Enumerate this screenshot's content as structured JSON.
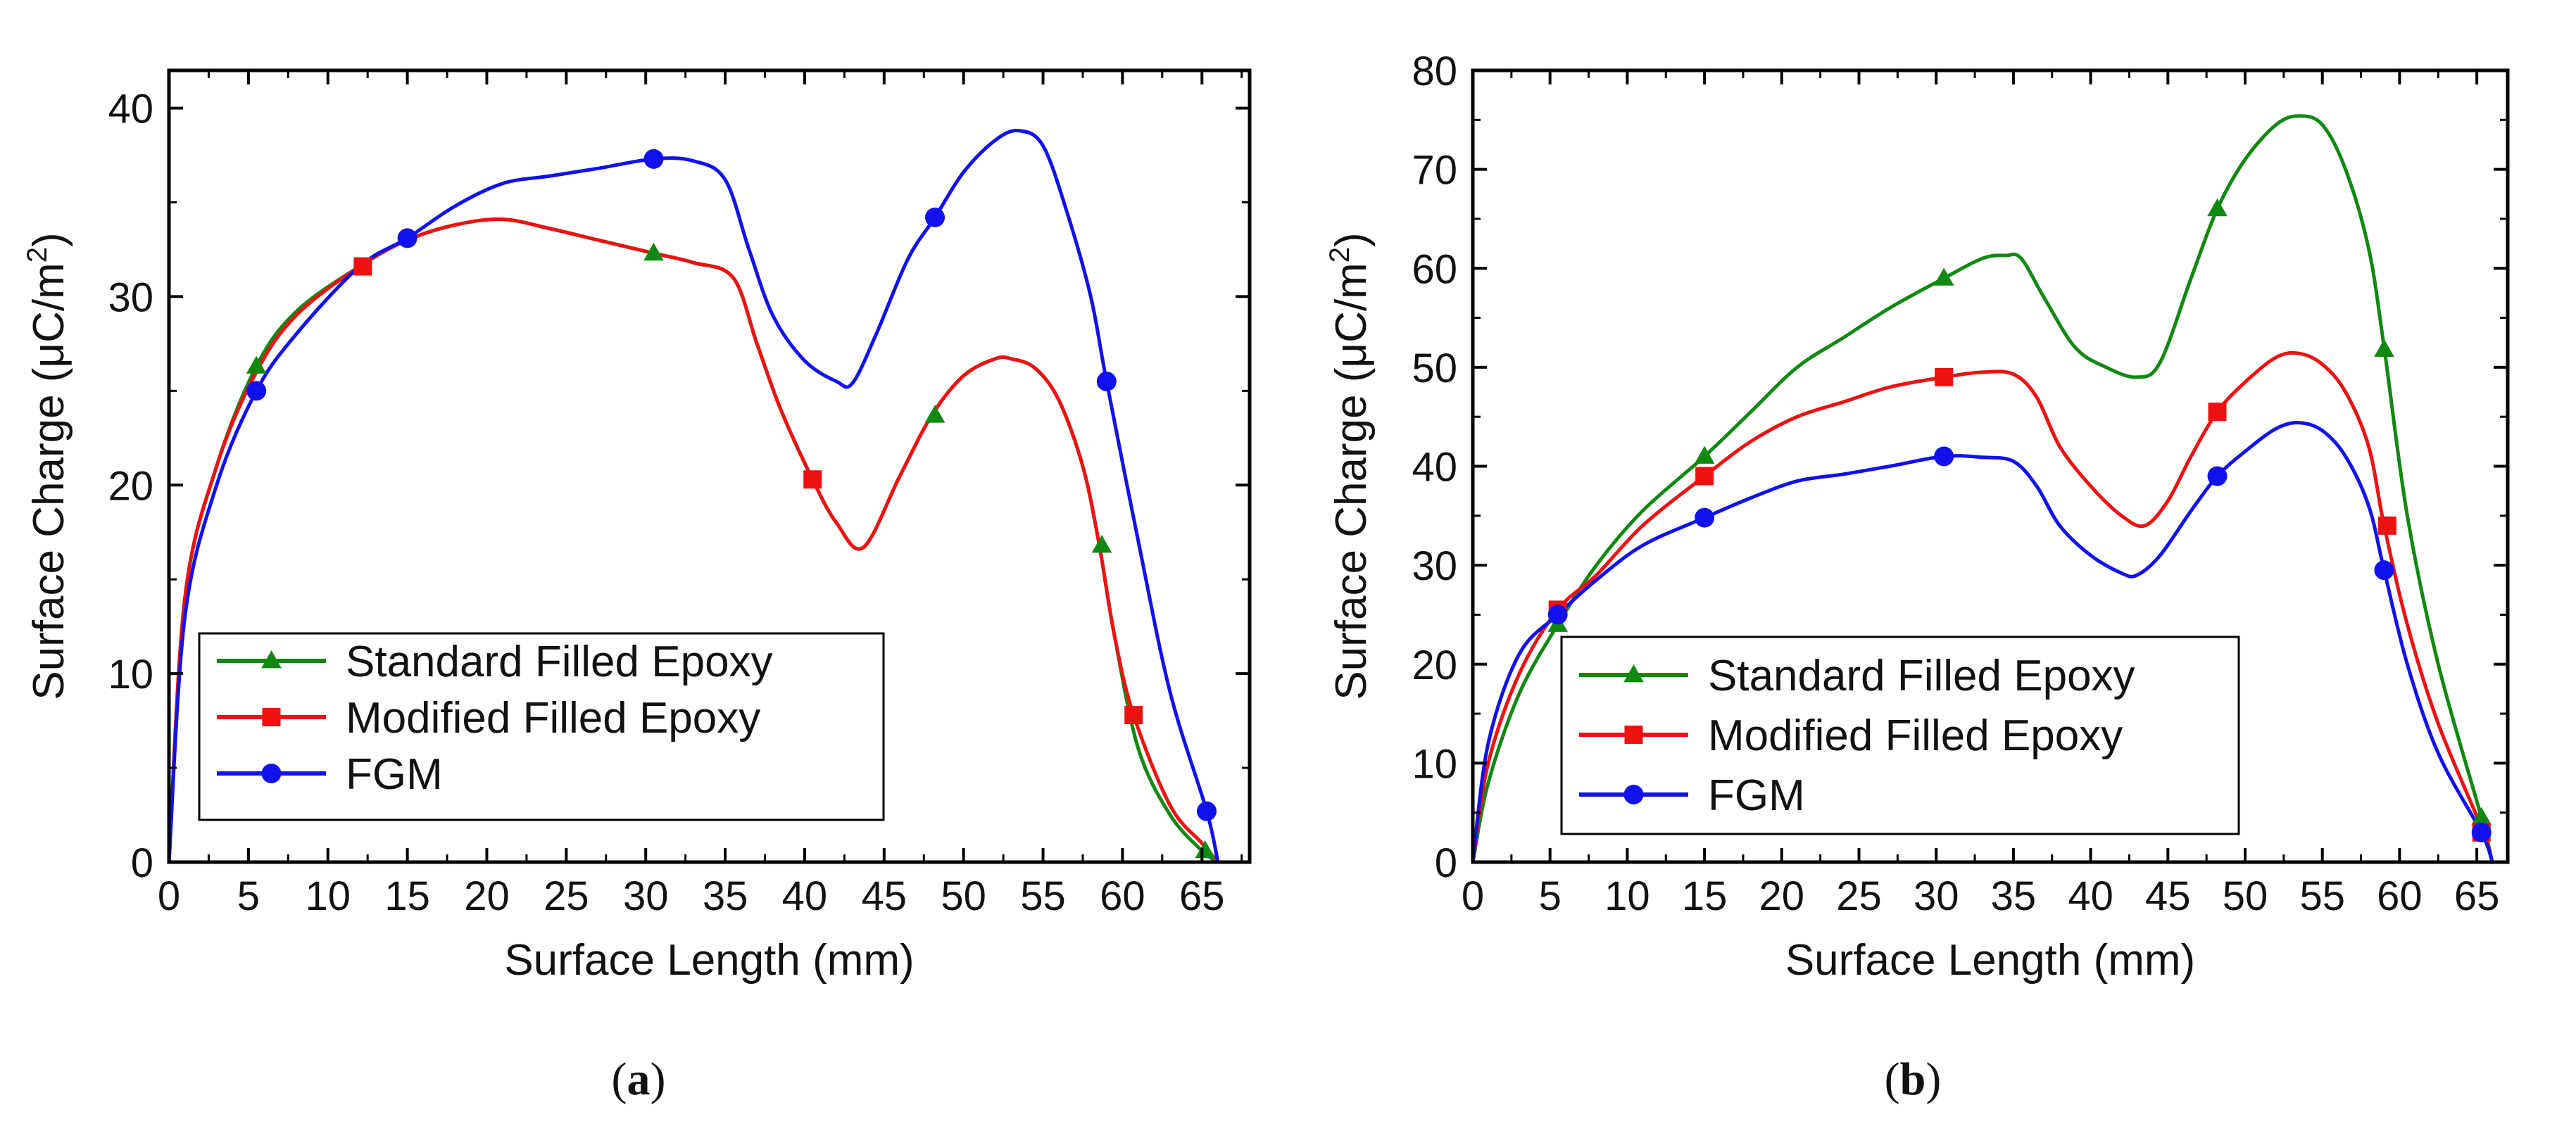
{
  "chart_data": [
    {
      "id": "a",
      "type": "line",
      "caption": "a",
      "xlabel": "Surface Length (mm)",
      "ylabel": "Surface Charge (μC/m²)",
      "ylabel_main": "Surface Charge (μC/m",
      "ylabel_sup": "2",
      "ylabel_close": ")",
      "xlim": [
        0,
        68
      ],
      "ylim": [
        0,
        42
      ],
      "xticks": [
        0,
        5,
        10,
        15,
        20,
        25,
        30,
        35,
        40,
        45,
        50,
        55,
        60,
        65
      ],
      "yticks": [
        0,
        10,
        20,
        30,
        40
      ],
      "legend_position": "bottom-left",
      "series": [
        {
          "name": "Standard Filled Epoxy",
          "color": "#118811",
          "marker": "triangle",
          "x": [
            0,
            1,
            3,
            5.5,
            8,
            12,
            15,
            18,
            21,
            24,
            27,
            30.5,
            33,
            35.5,
            37,
            38.5,
            40.5,
            42,
            43.7,
            46,
            48,
            50,
            52,
            53,
            54.5,
            56,
            57.5,
            58.5,
            59.5,
            61,
            63,
            65,
            66
          ],
          "y": [
            0,
            14,
            21,
            26.3,
            29.2,
            31.6,
            33,
            33.8,
            34.1,
            33.6,
            33,
            32.3,
            31.8,
            31,
            27.5,
            24,
            20.3,
            18,
            16.7,
            20.5,
            23.7,
            25.8,
            26.7,
            26.7,
            26.2,
            24.5,
            21,
            17,
            12,
            6,
            2.5,
            0.6,
            0
          ],
          "marker_x": [
            5.5,
            30.5,
            48.2,
            58.7,
            65.2
          ],
          "marker_y": [
            26.3,
            32.3,
            23.7,
            16.8,
            0.6
          ]
        },
        {
          "name": "Modified Filled Epoxy",
          "color": "#ee1111",
          "marker": "square",
          "x": [
            0,
            1,
            3,
            5.5,
            8,
            12,
            15,
            18,
            21,
            24,
            27,
            30.5,
            33,
            35.5,
            37,
            38.5,
            40.5,
            42,
            43.7,
            46,
            48,
            50,
            52,
            53,
            54.5,
            56,
            57.5,
            58.5,
            59.5,
            60.7,
            63,
            65,
            66
          ],
          "y": [
            0,
            14,
            21,
            26,
            29,
            31.6,
            33,
            33.8,
            34.1,
            33.6,
            33,
            32.3,
            31.8,
            31,
            27.5,
            24,
            20.3,
            18,
            16.7,
            20.5,
            23.7,
            25.8,
            26.7,
            26.7,
            26.2,
            24.5,
            21,
            17,
            12,
            7.8,
            3,
            1,
            0
          ],
          "marker_x": [
            12.2,
            40.5,
            60.7
          ],
          "marker_y": [
            31.6,
            20.3,
            7.8
          ]
        },
        {
          "name": "FGM",
          "color": "#1111ee",
          "marker": "circle",
          "x": [
            0,
            1,
            3,
            5.5,
            8,
            12,
            15,
            18,
            21,
            24,
            27,
            30.5,
            33,
            35,
            36.5,
            38,
            40,
            42,
            43,
            44.5,
            46.5,
            48.2,
            50,
            52,
            53.5,
            55,
            56.5,
            58,
            59,
            61,
            63,
            65.3,
            66
          ],
          "y": [
            0,
            13,
            20,
            25,
            28,
            31.6,
            33.1,
            34.8,
            36,
            36.4,
            36.8,
            37.3,
            37.2,
            36.2,
            32.5,
            29,
            26.6,
            25.5,
            25.4,
            28,
            32,
            34.2,
            36.6,
            38.3,
            38.8,
            38,
            34.5,
            30,
            25.5,
            17,
            9,
            2.7,
            0
          ],
          "marker_x": [
            5.5,
            15,
            30.5,
            48.2,
            59,
            65.3
          ],
          "marker_y": [
            25,
            33.1,
            37.3,
            34.2,
            25.5,
            2.7
          ]
        }
      ]
    },
    {
      "id": "b",
      "type": "line",
      "caption": "b",
      "xlabel": "Surface Length (mm)",
      "ylabel": "Surface Charge (μC/m²)",
      "ylabel_main": "Surface Charge (μC/m",
      "ylabel_sup": "2",
      "ylabel_close": ")",
      "xlim": [
        0,
        67
      ],
      "ylim": [
        0,
        80
      ],
      "xticks": [
        0,
        5,
        10,
        15,
        20,
        25,
        30,
        35,
        40,
        45,
        50,
        55,
        60,
        65
      ],
      "yticks": [
        0,
        10,
        20,
        30,
        40,
        50,
        60,
        70,
        80
      ],
      "legend_position": "bottom-left",
      "series": [
        {
          "name": "Standard Filled Epoxy",
          "color": "#118811",
          "marker": "triangle",
          "x": [
            0,
            1,
            3,
            5.5,
            8,
            11,
            15,
            18,
            21,
            24,
            27,
            30.5,
            33,
            34.5,
            35.5,
            37,
            39,
            41,
            43,
            44.5,
            46.5,
            48.2,
            50,
            52,
            53.5,
            55,
            56.5,
            58,
            59,
            60.5,
            62.5,
            65.3,
            66
          ],
          "y": [
            0,
            8,
            17,
            24,
            30,
            35.5,
            41,
            45.5,
            50,
            53,
            56,
            59,
            61,
            61.3,
            61,
            57,
            52,
            50,
            49,
            50.5,
            59,
            66,
            71,
            74.5,
            75.4,
            74.5,
            70,
            62,
            52,
            35,
            20,
            4.5,
            0
          ],
          "marker_x": [
            5.5,
            15,
            30.5,
            48.2,
            59,
            65.3
          ],
          "marker_y": [
            24,
            41,
            59,
            66,
            51.8,
            4.5
          ]
        },
        {
          "name": "Modified Filled Epoxy",
          "color": "#ee1111",
          "marker": "square",
          "x": [
            0,
            1,
            3,
            5.5,
            8,
            11,
            15,
            18,
            21,
            24,
            27,
            30.5,
            33,
            35,
            36.5,
            38,
            40,
            42,
            43.5,
            45,
            46.5,
            48.2,
            50,
            52,
            53.5,
            55,
            56.5,
            58,
            59,
            60.5,
            62.5,
            65.3,
            66
          ],
          "y": [
            0,
            10,
            19,
            25.5,
            29,
            34,
            39,
            42.5,
            45,
            46.5,
            48,
            49,
            49.5,
            49.3,
            47,
            42,
            38,
            35,
            34,
            36.5,
            41,
            45.5,
            48.5,
            51,
            51.4,
            50.3,
            47.5,
            42,
            34,
            24,
            14,
            3.5,
            0
          ],
          "marker_x": [
            5.5,
            15,
            30.5,
            48.2,
            59.2,
            65.3
          ],
          "marker_y": [
            25.5,
            39,
            49,
            45.5,
            34,
            3
          ]
        },
        {
          "name": "FGM",
          "color": "#1111ee",
          "marker": "circle",
          "x": [
            0,
            1,
            3,
            5.5,
            8,
            11,
            15,
            18,
            21,
            24,
            27,
            30.5,
            33,
            35,
            36.5,
            38,
            40,
            42,
            43,
            44.5,
            46.5,
            48.2,
            50,
            52,
            53.5,
            55,
            56.5,
            58,
            59,
            60.5,
            62.5,
            65.3,
            66
          ],
          "y": [
            0,
            12,
            21,
            25,
            28.5,
            32,
            34.8,
            36.8,
            38.5,
            39.2,
            40,
            41,
            40.9,
            40.5,
            38,
            34,
            31,
            29.2,
            29,
            31,
            35.5,
            39,
            41.5,
            43.8,
            44.4,
            43.6,
            41,
            36,
            29.5,
            20,
            11,
            3,
            0
          ],
          "marker_x": [
            5.5,
            15,
            30.5,
            48.2,
            59,
            65.3
          ],
          "marker_y": [
            25,
            34.8,
            41,
            39,
            29.5,
            3
          ]
        }
      ]
    }
  ]
}
